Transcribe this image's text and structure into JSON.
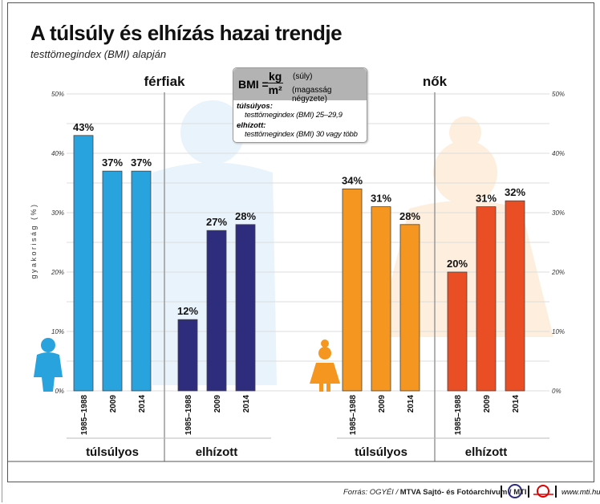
{
  "title": "A túlsúly és elhízás hazai trendje",
  "subtitle": "testtömegindex (BMI) alapján",
  "bmi_box": {
    "label": "BMI =",
    "numerator": "kg",
    "denominator": "m²",
    "numerator_note": "(súly)",
    "denominator_note": "(magasság négyzete)",
    "def1_term": "túlsúlyos:",
    "def1_text": "testtömegindex (BMI) 25–29,9",
    "def2_term": "elhízott:",
    "def2_text": "testtömegindex (BMI) 30 vagy több"
  },
  "footer": {
    "source_prefix": "Forrás: OGYÉI / ",
    "source_bold": "MTVA Sajtó- és Fotóarchívum / MTI",
    "website": "www.mti.hu"
  },
  "chart_data": {
    "type": "bar",
    "ylabel": "gyakoriság (%)",
    "ylim": [
      0,
      50
    ],
    "yticks": [
      "0%",
      "10%",
      "20%",
      "30%",
      "40%",
      "50%"
    ],
    "grid": true,
    "categories": [
      "1985–1988",
      "2009",
      "2014"
    ],
    "panels": [
      {
        "name": "férfiak",
        "groups": [
          {
            "name": "túlsúlyos",
            "color": "#29a3de",
            "values": [
              43,
              37,
              37
            ],
            "labels": [
              "43%",
              "37%",
              "37%"
            ]
          },
          {
            "name": "elhízott",
            "color": "#2e2c7c",
            "values": [
              12,
              27,
              28
            ],
            "labels": [
              "12%",
              "27%",
              "28%"
            ]
          }
        ]
      },
      {
        "name": "nők",
        "groups": [
          {
            "name": "túlsúlyos",
            "color": "#f4961f",
            "values": [
              34,
              31,
              28
            ],
            "labels": [
              "34%",
              "31%",
              "28%"
            ]
          },
          {
            "name": "elhízott",
            "color": "#e94e24",
            "values": [
              20,
              31,
              32
            ],
            "labels": [
              "20%",
              "31%",
              "32%"
            ]
          }
        ]
      }
    ]
  }
}
